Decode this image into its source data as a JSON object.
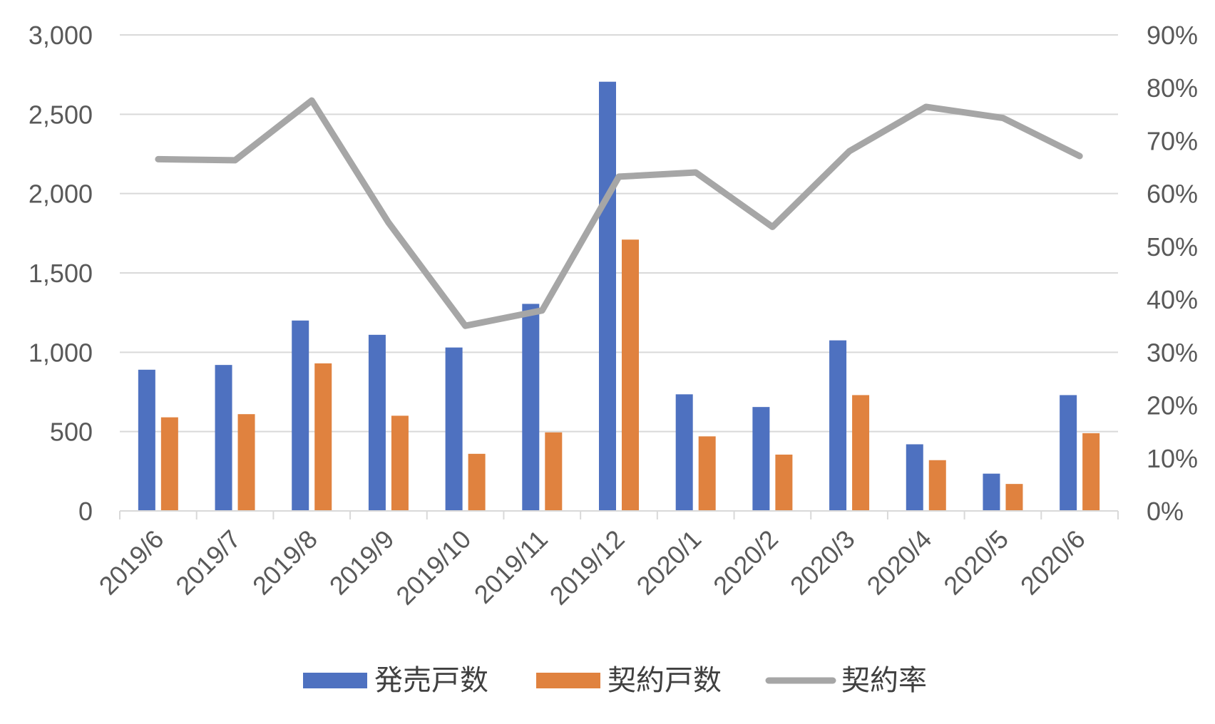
{
  "chart_data": {
    "type": "bar",
    "categories": [
      "2019/6",
      "2019/7",
      "2019/8",
      "2019/9",
      "2019/10",
      "2019/11",
      "2019/12",
      "2020/1",
      "2020/2",
      "2020/3",
      "2020/4",
      "2020/5",
      "2020/6"
    ],
    "series": [
      {
        "name": "発売戸数",
        "type": "bar",
        "axis": "left",
        "color": "#4e71c0",
        "values": [
          890,
          920,
          1200,
          1110,
          1030,
          1305,
          2705,
          735,
          655,
          1075,
          420,
          235,
          730
        ]
      },
      {
        "name": "契約戸数",
        "type": "bar",
        "axis": "left",
        "color": "#e0823f",
        "values": [
          590,
          610,
          930,
          600,
          360,
          495,
          1710,
          470,
          355,
          730,
          320,
          170,
          490
        ]
      },
      {
        "name": "契約率",
        "type": "line",
        "axis": "right",
        "color": "#a6a6a6",
        "values": [
          0.665,
          0.663,
          0.776,
          0.545,
          0.35,
          0.379,
          0.632,
          0.64,
          0.537,
          0.68,
          0.764,
          0.743,
          0.671
        ]
      }
    ],
    "left_axis": {
      "min": 0,
      "max": 3000,
      "step": 500,
      "tick_labels": [
        "0",
        "500",
        "1,000",
        "1,500",
        "2,000",
        "2,500",
        "3,000"
      ]
    },
    "right_axis": {
      "min": 0,
      "max": 0.9,
      "step": 0.1,
      "tick_labels": [
        "0%",
        "10%",
        "20%",
        "30%",
        "40%",
        "50%",
        "60%",
        "70%",
        "80%",
        "90%"
      ]
    },
    "grid": true,
    "legend_position": "bottom",
    "title": "",
    "xlabel": "",
    "ylabel": ""
  },
  "legend": {
    "items": [
      {
        "label": "発売戸数",
        "color": "#4e71c0",
        "kind": "bar"
      },
      {
        "label": "契約戸数",
        "color": "#e0823f",
        "kind": "bar"
      },
      {
        "label": "契約率",
        "color": "#a6a6a6",
        "kind": "line"
      }
    ]
  }
}
